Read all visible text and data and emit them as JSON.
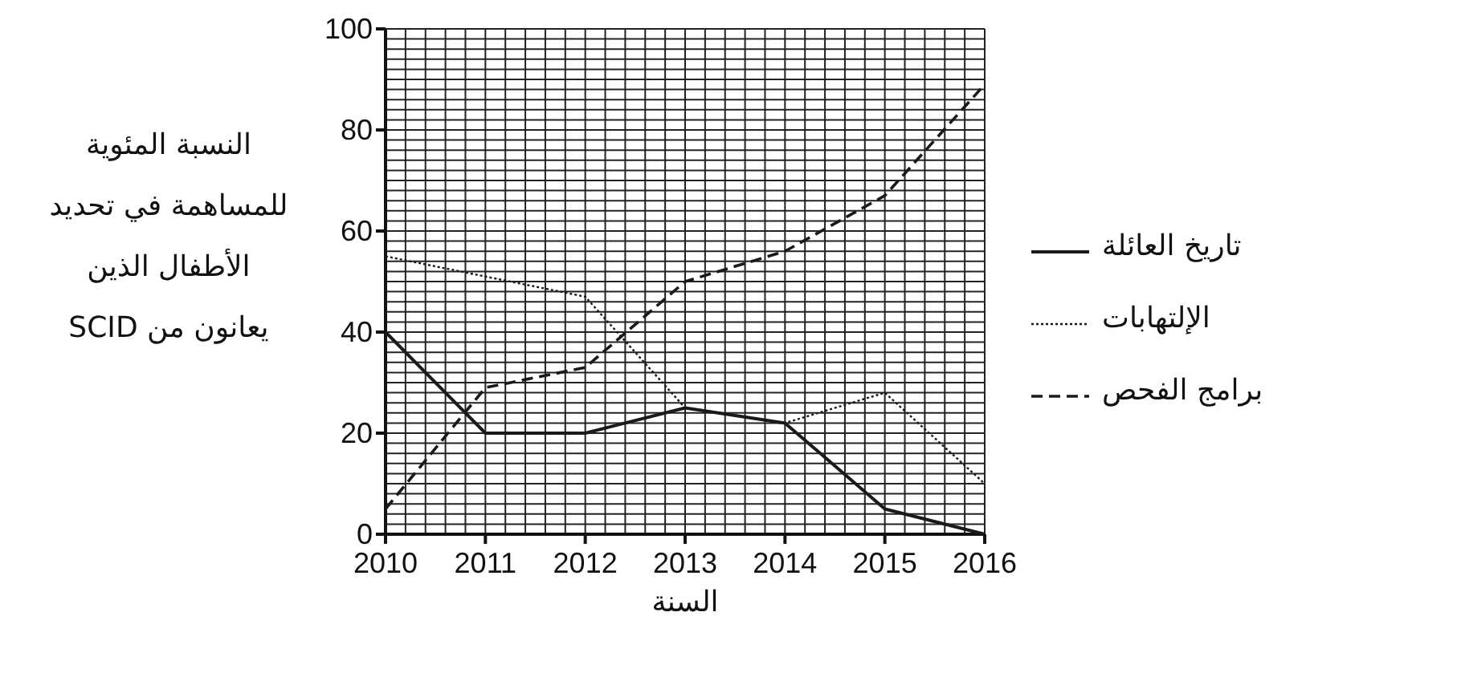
{
  "chart_data": {
    "type": "line",
    "xlabel": "السنة",
    "ylabel": "النسبة المئوية للمساهمة في تحديد الأطفال الذين يعانون من SCID",
    "x": [
      2010,
      2011,
      2012,
      2013,
      2014,
      2015,
      2016
    ],
    "xlim": [
      2010,
      2016
    ],
    "xticks": [
      2010,
      2011,
      2012,
      2013,
      2014,
      2015,
      2016
    ],
    "ylim": [
      0,
      100
    ],
    "yticks": [
      0,
      20,
      40,
      60,
      80,
      100
    ],
    "grid": true,
    "legend": "right",
    "marker": "none",
    "series": [
      {
        "name": "تاريخ العائلة",
        "color": "#1a1a1a",
        "line_style": "solid",
        "values": [
          40,
          20,
          20,
          25,
          22,
          5,
          0
        ]
      },
      {
        "name": "الإلتهابات",
        "color": "#1a1a1a",
        "line_style": "dotted",
        "values": [
          55,
          51,
          47,
          25,
          22,
          28,
          10
        ]
      },
      {
        "name": "برامج الفحص",
        "color": "#1a1a1a",
        "line_style": "dashed",
        "values": [
          5,
          29,
          33,
          50,
          56,
          67,
          89
        ]
      }
    ]
  }
}
